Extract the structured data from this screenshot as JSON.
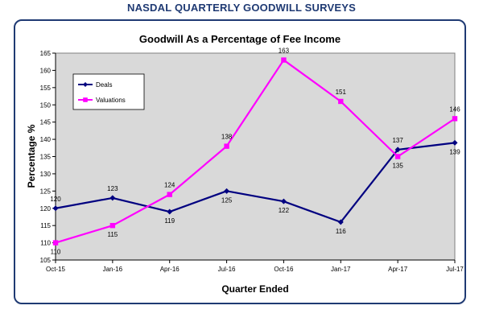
{
  "header": {
    "title": "NASDAL QUARTERLY GOODWILL SURVEYS"
  },
  "colors": {
    "header": "#1f3a73",
    "frame": "#1f3a73",
    "deals": "#000080",
    "valuations": "#ff00ff",
    "plot_bg": "#d9d9d9"
  },
  "chart_data": {
    "type": "line",
    "title": "Goodwill As a Percentage of Fee Income",
    "xlabel": "Quarter Ended",
    "ylabel": "Percentage %",
    "categories": [
      "Oct-15",
      "Jan-16",
      "Apr-16",
      "Jul-16",
      "Oct-16",
      "Jan-17",
      "Apr-17",
      "Jul-17"
    ],
    "ylim": [
      105,
      165
    ],
    "yticks": [
      105,
      110,
      115,
      120,
      125,
      130,
      135,
      140,
      145,
      150,
      155,
      160,
      165
    ],
    "grid": false,
    "legend": "top-left",
    "series": [
      {
        "name": "Deals",
        "color": "#000080",
        "marker": "diamond",
        "values": [
          120,
          123,
          119,
          125,
          122,
          116,
          137,
          139
        ]
      },
      {
        "name": "Valuations",
        "color": "#ff00ff",
        "marker": "square",
        "values": [
          110,
          115,
          124,
          138,
          163,
          151,
          135,
          146
        ]
      }
    ]
  }
}
